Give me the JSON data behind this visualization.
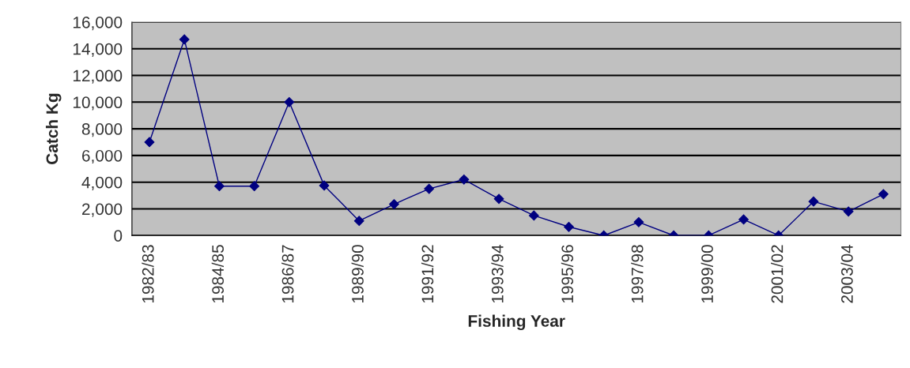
{
  "chart_data": {
    "type": "line",
    "xlabel": "Fishing Year",
    "ylabel": "Catch Kg",
    "categories": [
      "1982/83",
      null,
      "1984/85",
      null,
      "1986/87",
      null,
      "1989/90",
      null,
      "1991/92",
      null,
      "1993/94",
      null,
      "1995/96",
      null,
      "1997/98",
      null,
      "1999/00",
      null,
      "2001/02",
      null,
      "2003/04",
      null
    ],
    "series": [
      {
        "color": "#000080",
        "values": [
          7000,
          14700,
          3700,
          3700,
          10000,
          3750,
          1100,
          2350,
          3500,
          4200,
          2750,
          1500,
          650,
          0,
          1000,
          0,
          0,
          1200,
          0,
          2550,
          1800,
          3100
        ]
      }
    ],
    "ylim": [
      0,
      16000
    ],
    "yticks": [
      {
        "value": 0,
        "label": "0"
      },
      {
        "value": 2000,
        "label": "2,000"
      },
      {
        "value": 4000,
        "label": "4,000"
      },
      {
        "value": 6000,
        "label": "6,000"
      },
      {
        "value": 8000,
        "label": "8,000"
      },
      {
        "value": 10000,
        "label": "10,000"
      },
      {
        "value": 12000,
        "label": "12,000"
      },
      {
        "value": 14000,
        "label": "14,000"
      },
      {
        "value": 16000,
        "label": "16,000"
      }
    ],
    "grid": "y",
    "marker": "diamond",
    "line_style": "solid",
    "legend": false
  }
}
